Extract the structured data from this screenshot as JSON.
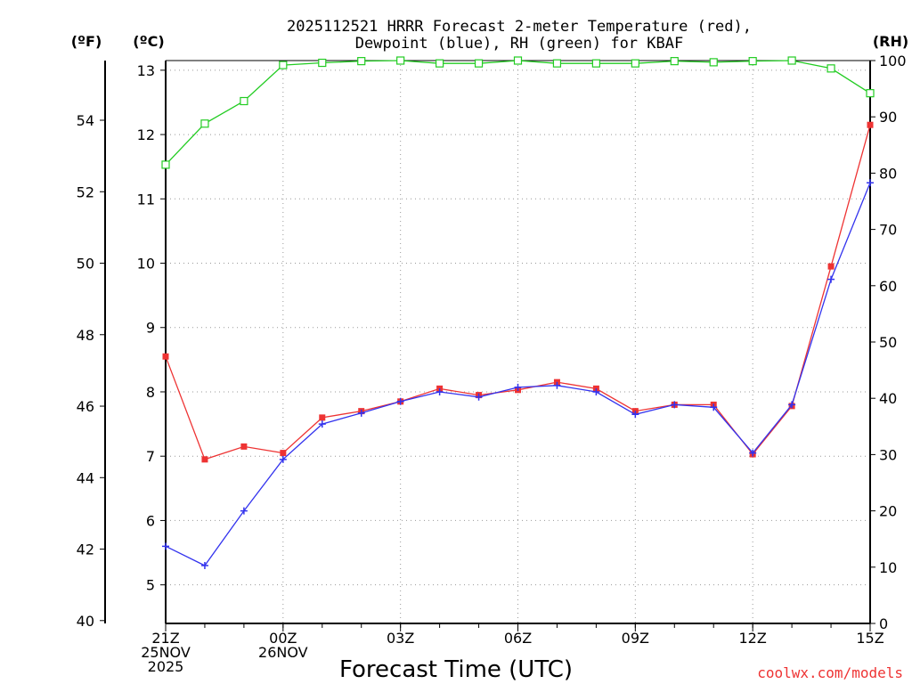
{
  "title_line1": "2025112521 HRRR Forecast 2-meter Temperature (red),",
  "title_line2": "Dewpoint (blue), RH (green) for KBAF",
  "units": {
    "f": "(ºF)",
    "c": "(ºC)",
    "rh": "(RH)"
  },
  "watermark": "coolwx.com/models",
  "chart_data": {
    "type": "line",
    "title": "2025112521 HRRR Forecast 2-meter Temperature (red), Dewpoint (blue), RH (green) for KBAF",
    "xlabel": "Forecast Time (UTC)",
    "x_hours": [
      0,
      1,
      2,
      3,
      4,
      5,
      6,
      7,
      8,
      9,
      10,
      11,
      12,
      13,
      14,
      15,
      16,
      17,
      18
    ],
    "x_ticks": [
      {
        "hour": 0,
        "lines": [
          "21Z",
          "25NOV",
          "2025"
        ]
      },
      {
        "hour": 3,
        "lines": [
          "00Z",
          "26NOV"
        ]
      },
      {
        "hour": 6,
        "lines": [
          "03Z"
        ]
      },
      {
        "hour": 9,
        "lines": [
          "06Z"
        ]
      },
      {
        "hour": 12,
        "lines": [
          "09Z"
        ]
      },
      {
        "hour": 15,
        "lines": [
          "12Z"
        ]
      },
      {
        "hour": 18,
        "lines": [
          "15Z"
        ]
      }
    ],
    "ylim_c": [
      4.4,
      13.15
    ],
    "yticks_c": [
      5,
      6,
      7,
      8,
      9,
      10,
      11,
      12,
      13
    ],
    "yticks_f": [
      40,
      42,
      44,
      46,
      48,
      50,
      52,
      54
    ],
    "ylim_rh": [
      0,
      100
    ],
    "yticks_rh": [
      0,
      10,
      20,
      30,
      40,
      50,
      60,
      70,
      80,
      90,
      100
    ],
    "series": [
      {
        "name": "Temperature",
        "unit": "C",
        "color": "#ee3333",
        "marker": "square-filled",
        "values": [
          8.55,
          6.95,
          7.15,
          7.05,
          7.6,
          7.7,
          7.85,
          8.05,
          7.95,
          8.03,
          8.15,
          8.05,
          7.7,
          7.8,
          7.8,
          7.03,
          7.78,
          9.95,
          12.15
        ]
      },
      {
        "name": "Dewpoint",
        "unit": "C",
        "color": "#3333ee",
        "marker": "plus",
        "values": [
          5.6,
          5.3,
          6.15,
          6.95,
          7.5,
          7.67,
          7.85,
          8.0,
          7.92,
          8.07,
          8.1,
          8.0,
          7.65,
          7.8,
          7.76,
          7.05,
          7.8,
          9.75,
          11.25
        ]
      },
      {
        "name": "RH",
        "unit": "%",
        "color": "#22cc22",
        "marker": "square-open",
        "values": [
          81.5,
          88.8,
          92.8,
          99.2,
          99.6,
          99.9,
          100,
          99.5,
          99.5,
          100,
          99.5,
          99.5,
          99.5,
          99.9,
          99.7,
          99.9,
          100,
          98.6,
          94.2
        ]
      }
    ]
  }
}
